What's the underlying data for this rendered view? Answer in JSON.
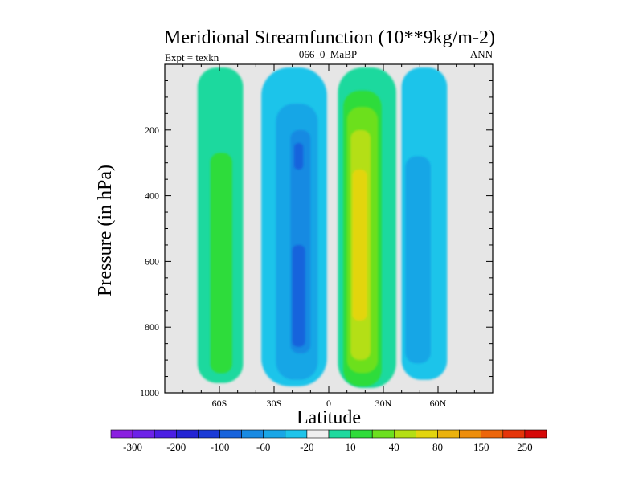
{
  "chart_data": {
    "type": "contour",
    "title": "Meridional Streamfunction (10**9kg/m-2)",
    "subtitle_left": "Expt = texkn",
    "subtitle_center": "066_0_MaBP",
    "subtitle_right": "ANN",
    "xlabel": "Latitude",
    "ylabel": "Pressure (in hPa)",
    "xlim": [
      -90,
      90
    ],
    "ylim": [
      1000,
      0
    ],
    "x_ticks": [
      {
        "value": -60,
        "label": "60S"
      },
      {
        "value": -30,
        "label": "30S"
      },
      {
        "value": 0,
        "label": "0"
      },
      {
        "value": 30,
        "label": "30N"
      },
      {
        "value": 60,
        "label": "60N"
      }
    ],
    "y_ticks": [
      {
        "value": 200,
        "label": "200"
      },
      {
        "value": 400,
        "label": "400"
      },
      {
        "value": 600,
        "label": "600"
      },
      {
        "value": 800,
        "label": "800"
      },
      {
        "value": 1000,
        "label": "1000"
      }
    ],
    "background_color": "#e6e6e6",
    "colorbar": {
      "labels": [
        "-300",
        "-200",
        "-100",
        "-60",
        "-20",
        "10",
        "40",
        "80",
        "150",
        "250"
      ],
      "colors": [
        "#8a1fe0",
        "#6d22e8",
        "#4b1ee3",
        "#2424d4",
        "#1a3ad6",
        "#1763dc",
        "#188ae2",
        "#19a6e6",
        "#1ec4ea",
        "#efefef",
        "#1ed99e",
        "#2fdc3a",
        "#6ce01f",
        "#b4df14",
        "#e3d50e",
        "#ebb20d",
        "#ed8e0c",
        "#ec660b",
        "#e5350a",
        "#d60909"
      ]
    },
    "cells": [
      {
        "level": "10 to 20",
        "color": "#1ed99e",
        "lat": [
          -72,
          -47
        ],
        "p": [
          10,
          970
        ]
      },
      {
        "level": "20 to 40",
        "color": "#2fdc3a",
        "lat": [
          -65,
          -53
        ],
        "p": [
          270,
          940
        ]
      },
      {
        "level": "-20 to -10",
        "color": "#1ec4ea",
        "lat": [
          -37,
          -1
        ],
        "p": [
          10,
          980
        ]
      },
      {
        "level": "-40 to -20",
        "color": "#19a6e6",
        "lat": [
          -29,
          -6
        ],
        "p": [
          120,
          960
        ]
      },
      {
        "level": "-60 to -40",
        "color": "#188ae2",
        "lat": [
          -21,
          -10
        ],
        "p": [
          200,
          880
        ]
      },
      {
        "level": "-80 to -60",
        "color": "#1763dc",
        "lat": [
          -19,
          -14
        ],
        "p": [
          240,
          320
        ]
      },
      {
        "level": "-80 to -60",
        "color": "#1763dc",
        "lat": [
          -20,
          -13
        ],
        "p": [
          550,
          860
        ]
      },
      {
        "level": "10 to 20",
        "color": "#1ed99e",
        "lat": [
          5,
          37
        ],
        "p": [
          10,
          985
        ]
      },
      {
        "level": "20 to 40",
        "color": "#2fdc3a",
        "lat": [
          8,
          29
        ],
        "p": [
          80,
          980
        ]
      },
      {
        "level": "40 to 60",
        "color": "#6ce01f",
        "lat": [
          10,
          27
        ],
        "p": [
          130,
          940
        ]
      },
      {
        "level": "60 to 80",
        "color": "#b4df14",
        "lat": [
          12,
          23
        ],
        "p": [
          200,
          900
        ]
      },
      {
        "level": "80 to 100",
        "color": "#e3d50e",
        "lat": [
          13,
          21
        ],
        "p": [
          320,
          780
        ]
      },
      {
        "level": "-20 to -10",
        "color": "#1ec4ea",
        "lat": [
          40,
          65
        ],
        "p": [
          10,
          960
        ]
      },
      {
        "level": "-40 to -20",
        "color": "#19a6e6",
        "lat": [
          42,
          56
        ],
        "p": [
          280,
          910
        ]
      }
    ]
  }
}
